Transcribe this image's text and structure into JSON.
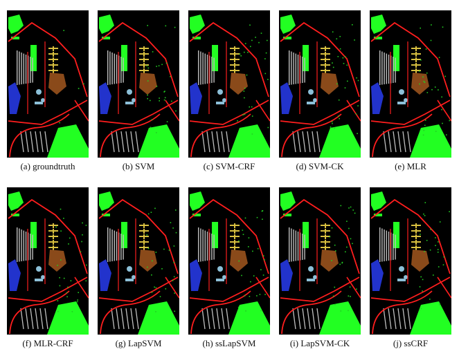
{
  "figure": {
    "captions": [
      "(a)  groundtruth",
      "(b)  SVM",
      "(c)  SVM-CRF",
      "(d)  SVM-CK",
      "(e)  MLR",
      "(f)  MLR-CRF",
      "(g)  LapSVM",
      "(h)  ssLapSVM",
      "(i)  LapSVM-CK",
      "(j)  ssCRF"
    ]
  },
  "colors": {
    "background": "#000000",
    "roads": "#ff1e1e",
    "meadows": "#22ff22",
    "trees": "#22cc22",
    "bricks": "#8a4a1a",
    "bitumen": "#d8c040",
    "gravel": "#bfbfbf",
    "shadows": "#8cc0d8",
    "water": "#2233cc"
  }
}
